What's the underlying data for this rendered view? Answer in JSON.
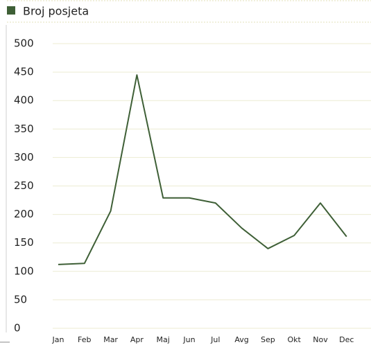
{
  "chart_data": {
    "type": "line",
    "categories": [
      "Jan",
      "Feb",
      "Mar",
      "Apr",
      "Maj",
      "Jun",
      "Jul",
      "Avg",
      "Sep",
      "Okt",
      "Nov",
      "Dec"
    ],
    "series": [
      {
        "name": "Broj posjeta",
        "color": "#3e5f36",
        "values": [
          112,
          114,
          206,
          445,
          229,
          229,
          220,
          176,
          140,
          163,
          220,
          161
        ]
      }
    ],
    "ylim": [
      0,
      500
    ],
    "yticks": [
      0,
      50,
      100,
      150,
      200,
      250,
      300,
      350,
      400,
      450,
      500
    ],
    "grid": true,
    "legend": "top-left"
  }
}
